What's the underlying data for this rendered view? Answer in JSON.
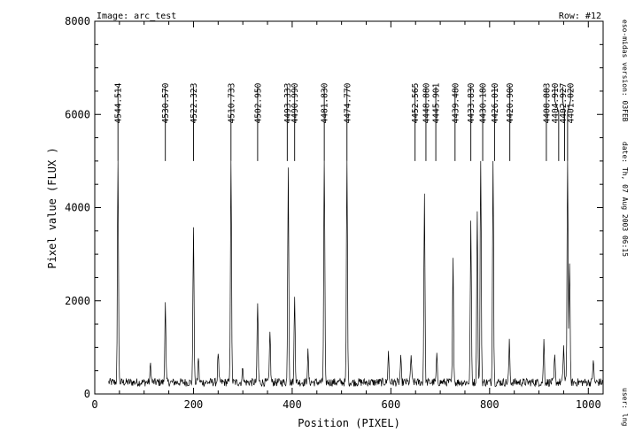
{
  "chart_data": {
    "type": "line",
    "header_image": "Image: arc_test",
    "header_row": "Row: #12",
    "xlabel": "Position (PIXEL)",
    "ylabel": "Pixel value (FLUX )",
    "xlim": [
      0,
      1030
    ],
    "ylim": [
      0,
      8000
    ],
    "x_ticks": [
      0,
      200,
      400,
      600,
      800,
      1000
    ],
    "y_ticks": [
      0,
      2000,
      4000,
      6000,
      8000
    ],
    "side_labels": [
      "eso-midas version: 03FEB",
      "date: Th, 07 Aug 2003 06:15",
      "user: lng"
    ],
    "baseline": 250,
    "x_start": 28,
    "x_end": 1030,
    "peaks": [
      {
        "x": 47,
        "height": 5000
      },
      {
        "x": 113,
        "height": 400
      },
      {
        "x": 143,
        "height": 1750
      },
      {
        "x": 200,
        "height": 3400
      },
      {
        "x": 210,
        "height": 550
      },
      {
        "x": 250,
        "height": 650
      },
      {
        "x": 276,
        "height": 5000
      },
      {
        "x": 300,
        "height": 350
      },
      {
        "x": 330,
        "height": 1700
      },
      {
        "x": 355,
        "height": 1150
      },
      {
        "x": 392,
        "height": 4650
      },
      {
        "x": 405,
        "height": 1850
      },
      {
        "x": 432,
        "height": 650
      },
      {
        "x": 465,
        "height": 5000
      },
      {
        "x": 511,
        "height": 5000
      },
      {
        "x": 595,
        "height": 650
      },
      {
        "x": 620,
        "height": 500
      },
      {
        "x": 641,
        "height": 600
      },
      {
        "x": 668,
        "height": 4100
      },
      {
        "x": 693,
        "height": 550
      },
      {
        "x": 726,
        "height": 2600
      },
      {
        "x": 762,
        "height": 3450
      },
      {
        "x": 775,
        "height": 3700
      },
      {
        "x": 782,
        "height": 5000
      },
      {
        "x": 807,
        "height": 5000
      },
      {
        "x": 840,
        "height": 850
      },
      {
        "x": 910,
        "height": 900
      },
      {
        "x": 932,
        "height": 550
      },
      {
        "x": 950,
        "height": 800
      },
      {
        "x": 958,
        "height": 5000
      },
      {
        "x": 962,
        "height": 2600
      },
      {
        "x": 1010,
        "height": 500
      }
    ],
    "line_ids": [
      {
        "label": "4544.514",
        "x": 47,
        "label_x": 47
      },
      {
        "label": "4530.570",
        "x": 143,
        "label_x": 143
      },
      {
        "label": "4522.323",
        "x": 200,
        "label_x": 200
      },
      {
        "label": "4510.733",
        "x": 276,
        "label_x": 276
      },
      {
        "label": "4502.950",
        "x": 330,
        "label_x": 330
      },
      {
        "label": "4493.333",
        "x": 390,
        "label_x": 390
      },
      {
        "label": "4490.990",
        "x": 405,
        "label_x": 405
      },
      {
        "label": "4481.830",
        "x": 465,
        "label_x": 465
      },
      {
        "label": "4474.770",
        "x": 511,
        "label_x": 511
      },
      {
        "label": "4452.565",
        "x": 649,
        "label_x": 649
      },
      {
        "label": "4448.880",
        "x": 671,
        "label_x": 671
      },
      {
        "label": "4445.901",
        "x": 691,
        "label_x": 691
      },
      {
        "label": "4439.480",
        "x": 730,
        "label_x": 730
      },
      {
        "label": "4433.830",
        "x": 762,
        "label_x": 762
      },
      {
        "label": "4430.180",
        "x": 786,
        "label_x": 786
      },
      {
        "label": "4426.010",
        "x": 810,
        "label_x": 810
      },
      {
        "label": "4420.900",
        "x": 841,
        "label_x": 841
      },
      {
        "label": "4408.883",
        "x": 915,
        "label_x": 915
      },
      {
        "label": "4404.910",
        "x": 940,
        "label_x": 932
      },
      {
        "label": "4402.927",
        "x": 952,
        "label_x": 948
      },
      {
        "label": "4401.020",
        "x": 958,
        "label_x": 964
      }
    ]
  }
}
